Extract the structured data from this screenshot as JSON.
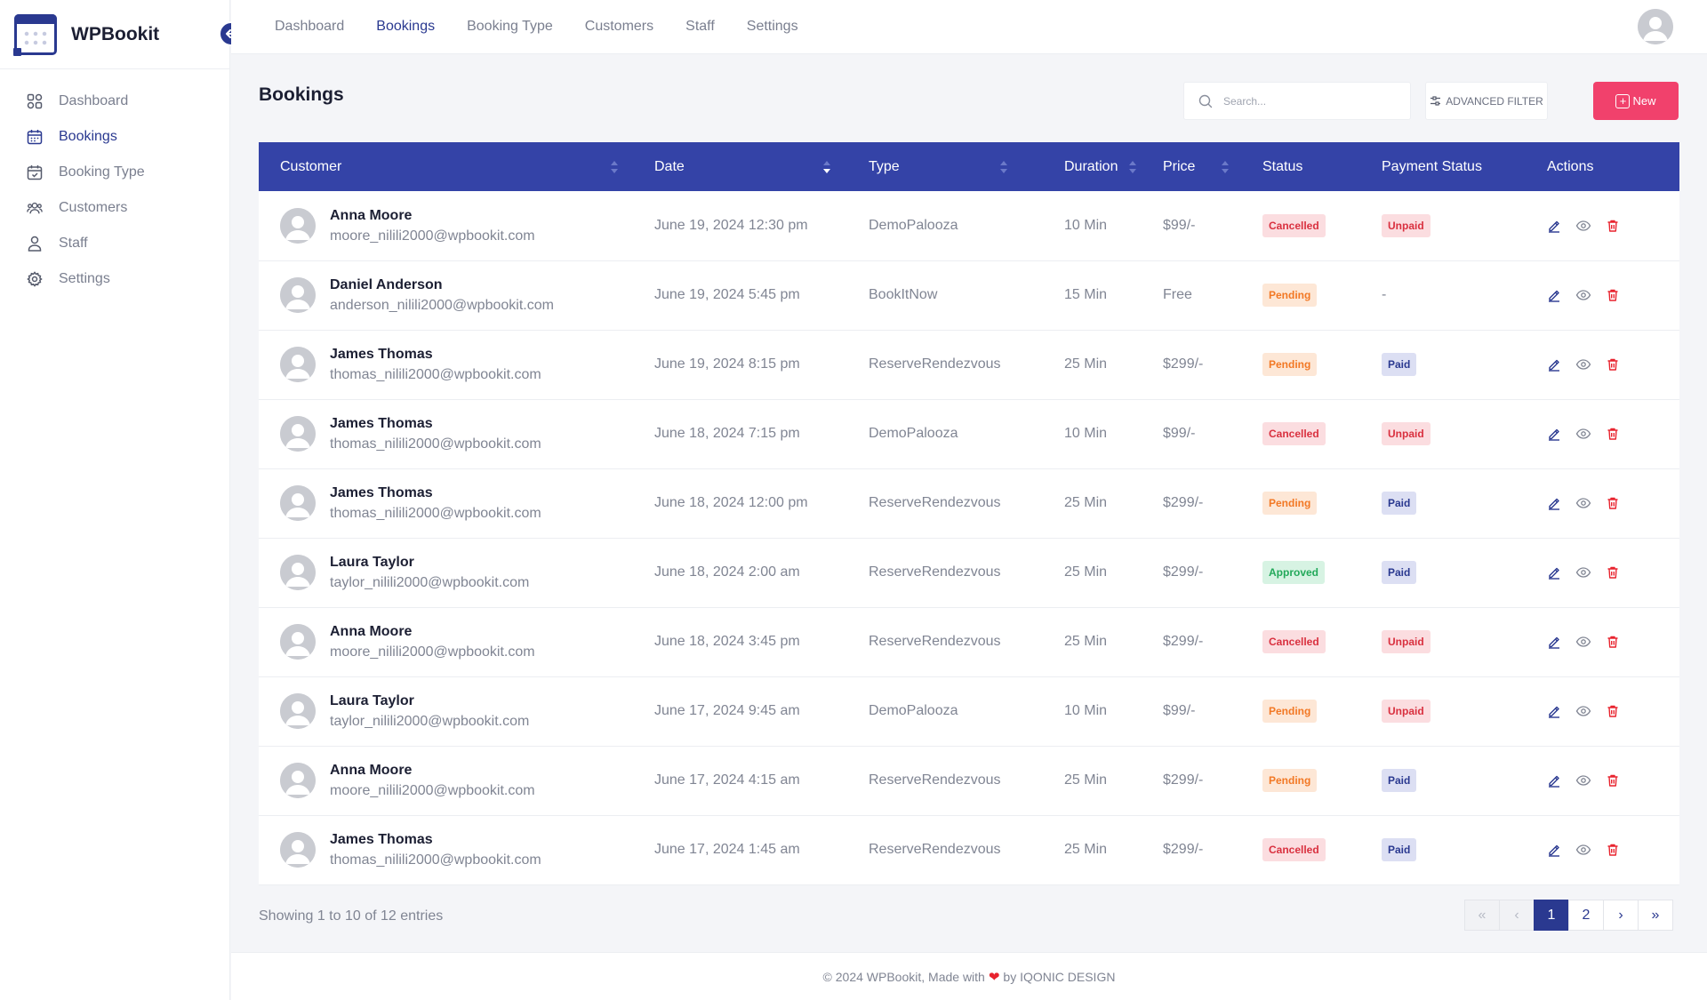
{
  "app": {
    "name": "WPBookit"
  },
  "sidebar": {
    "items": [
      {
        "label": "Dashboard",
        "icon": "dashboard-icon",
        "active": false
      },
      {
        "label": "Bookings",
        "icon": "calendar-icon",
        "active": true
      },
      {
        "label": "Booking Type",
        "icon": "calendar-check-icon",
        "active": false
      },
      {
        "label": "Customers",
        "icon": "users-icon",
        "active": false
      },
      {
        "label": "Staff",
        "icon": "user-icon",
        "active": false
      },
      {
        "label": "Settings",
        "icon": "gear-icon",
        "active": false
      }
    ]
  },
  "topnav": {
    "items": [
      {
        "label": "Dashboard",
        "active": false
      },
      {
        "label": "Bookings",
        "active": true
      },
      {
        "label": "Booking Type",
        "active": false
      },
      {
        "label": "Customers",
        "active": false
      },
      {
        "label": "Staff",
        "active": false
      },
      {
        "label": "Settings",
        "active": false
      }
    ]
  },
  "main": {
    "title": "Bookings",
    "search_placeholder": "Search...",
    "filter_label": "ADVANCED FILTER",
    "new_label": "New"
  },
  "table": {
    "columns": [
      "Customer",
      "Date",
      "Type",
      "Duration",
      "Price",
      "Status",
      "Payment Status",
      "Actions"
    ],
    "rows": [
      {
        "name": "Anna Moore",
        "email": "moore_nilili2000@wpbookit.com",
        "date": "June 19, 2024 12:30 pm",
        "type": "DemoPalooza",
        "duration": "10 Min",
        "price": "$99/-",
        "status": "Cancelled",
        "payment": "Unpaid"
      },
      {
        "name": "Daniel Anderson",
        "email": "anderson_nilili2000@wpbookit.com",
        "date": "June 19, 2024 5:45 pm",
        "type": "BookItNow",
        "duration": "15 Min",
        "price": "Free",
        "status": "Pending",
        "payment": "-"
      },
      {
        "name": "James Thomas",
        "email": "thomas_nilili2000@wpbookit.com",
        "date": "June 19, 2024 8:15 pm",
        "type": "ReserveRendezvous",
        "duration": "25 Min",
        "price": "$299/-",
        "status": "Pending",
        "payment": "Paid"
      },
      {
        "name": "James Thomas",
        "email": "thomas_nilili2000@wpbookit.com",
        "date": "June 18, 2024 7:15 pm",
        "type": "DemoPalooza",
        "duration": "10 Min",
        "price": "$99/-",
        "status": "Cancelled",
        "payment": "Unpaid"
      },
      {
        "name": "James Thomas",
        "email": "thomas_nilili2000@wpbookit.com",
        "date": "June 18, 2024 12:00 pm",
        "type": "ReserveRendezvous",
        "duration": "25 Min",
        "price": "$299/-",
        "status": "Pending",
        "payment": "Paid"
      },
      {
        "name": "Laura Taylor",
        "email": "taylor_nilili2000@wpbookit.com",
        "date": "June 18, 2024 2:00 am",
        "type": "ReserveRendezvous",
        "duration": "25 Min",
        "price": "$299/-",
        "status": "Approved",
        "payment": "Paid"
      },
      {
        "name": "Anna Moore",
        "email": "moore_nilili2000@wpbookit.com",
        "date": "June 18, 2024 3:45 pm",
        "type": "ReserveRendezvous",
        "duration": "25 Min",
        "price": "$299/-",
        "status": "Cancelled",
        "payment": "Unpaid"
      },
      {
        "name": "Laura Taylor",
        "email": "taylor_nilili2000@wpbookit.com",
        "date": "June 17, 2024 9:45 am",
        "type": "DemoPalooza",
        "duration": "10 Min",
        "price": "$99/-",
        "status": "Pending",
        "payment": "Unpaid"
      },
      {
        "name": "Anna Moore",
        "email": "moore_nilili2000@wpbookit.com",
        "date": "June 17, 2024 4:15 am",
        "type": "ReserveRendezvous",
        "duration": "25 Min",
        "price": "$299/-",
        "status": "Pending",
        "payment": "Paid"
      },
      {
        "name": "James Thomas",
        "email": "thomas_nilili2000@wpbookit.com",
        "date": "June 17, 2024 1:45 am",
        "type": "ReserveRendezvous",
        "duration": "25 Min",
        "price": "$299/-",
        "status": "Cancelled",
        "payment": "Paid"
      }
    ]
  },
  "footer": {
    "entries_text": "Showing 1 to 10 of 12 entries",
    "pagination": [
      "«",
      "‹",
      "1",
      "2",
      "›",
      "»"
    ],
    "current_page": "1",
    "copyright_before": "© 2024 WPBookit, Made with",
    "copyright_after": "by IQONIC DESIGN"
  },
  "colors": {
    "primary": "#2a3990",
    "header": "#3443a7",
    "accent": "#f1416c"
  }
}
